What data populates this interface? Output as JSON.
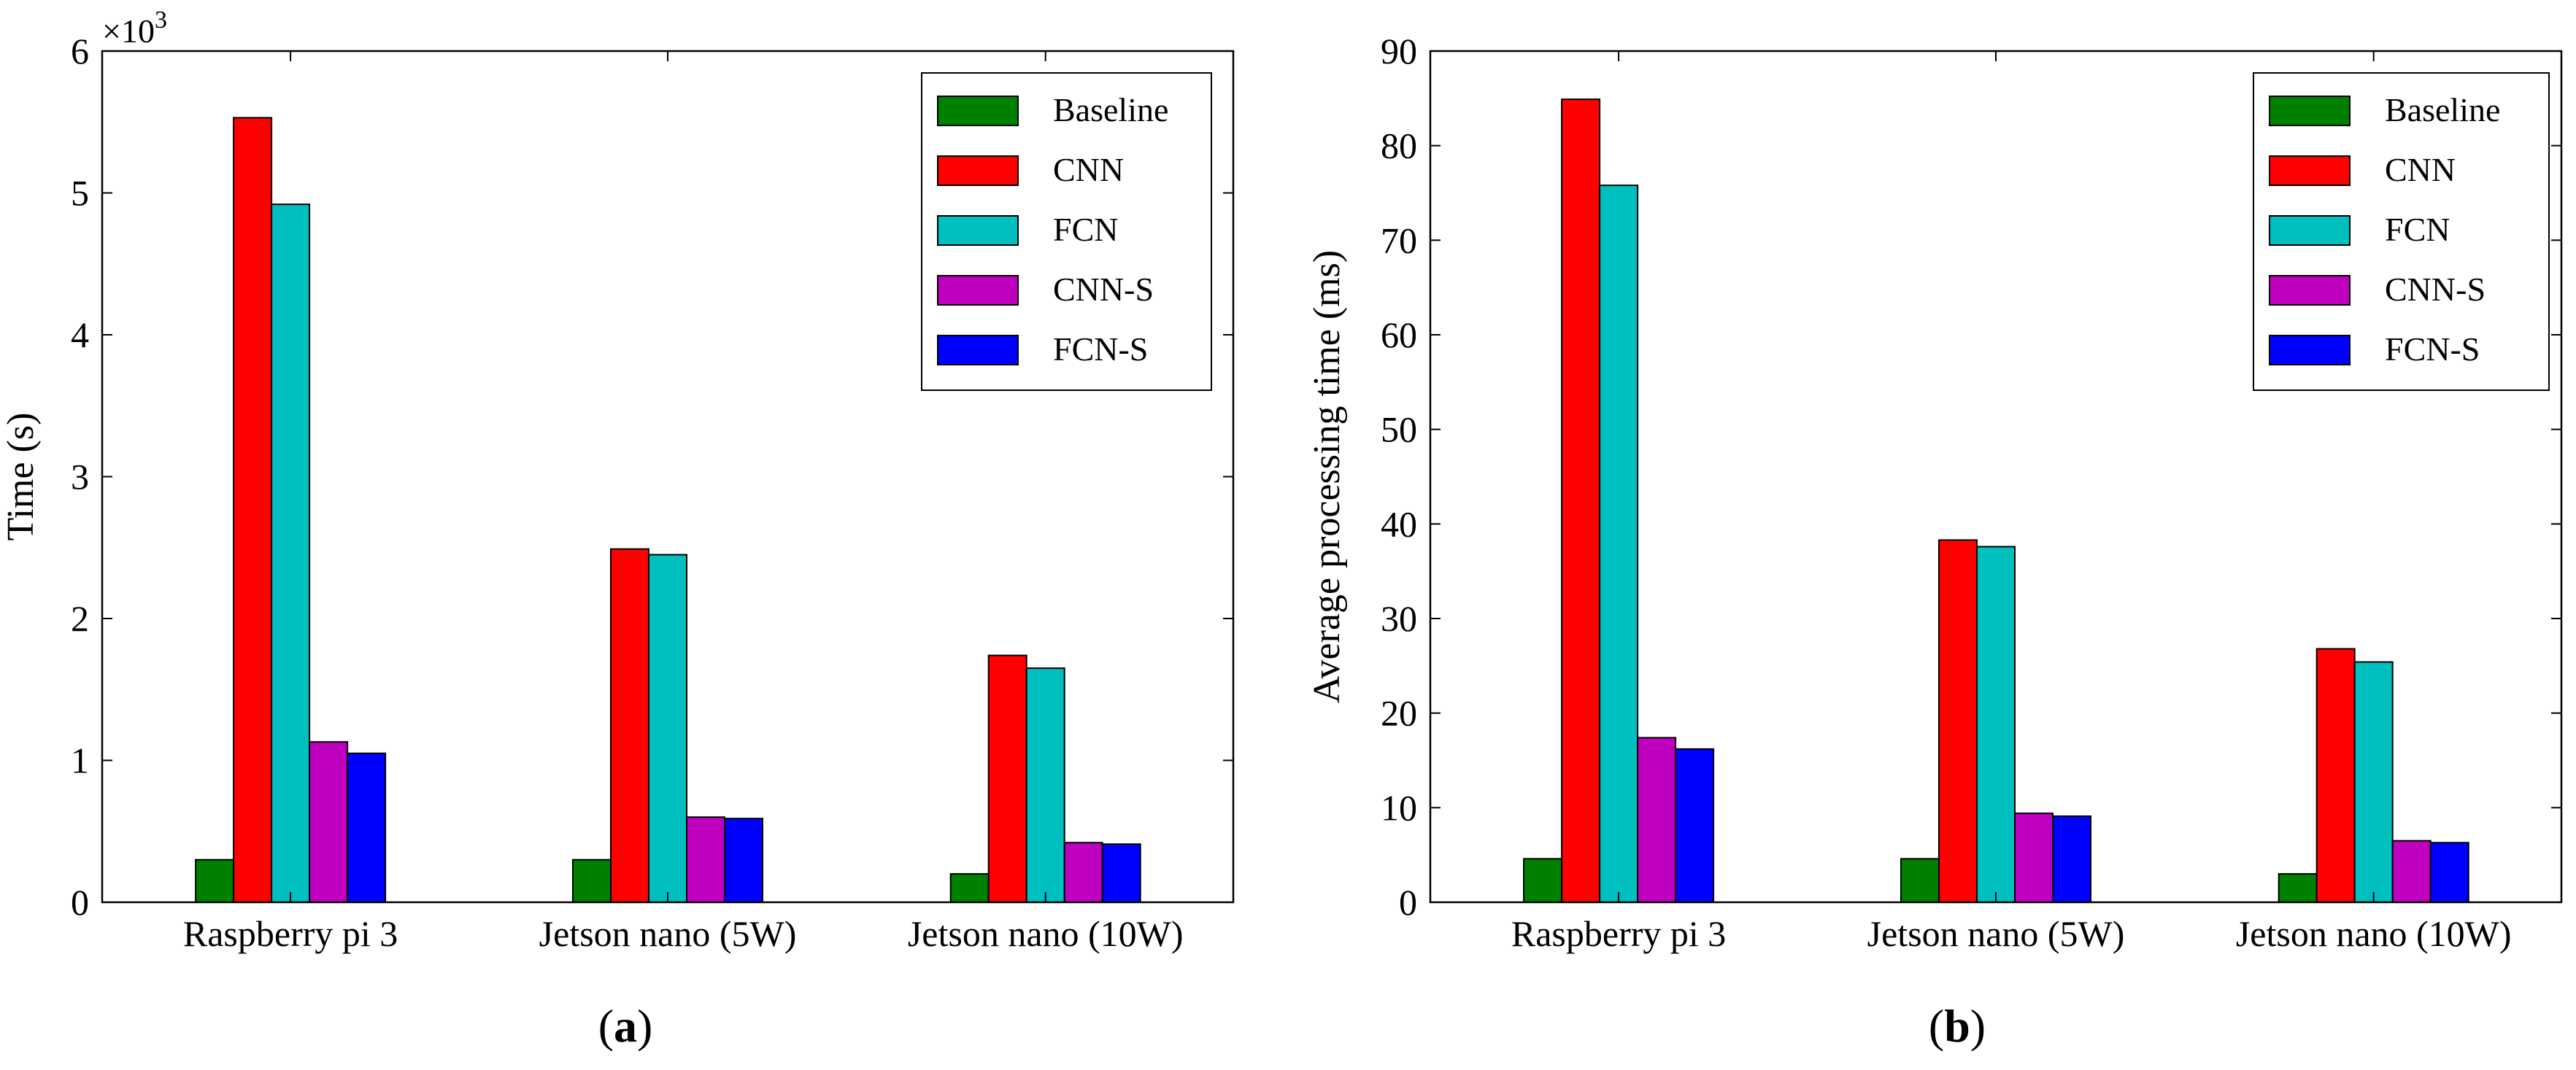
{
  "chart_data": [
    {
      "type": "bar",
      "caption": "a",
      "ylabel": "Time (s)",
      "xlabel": "",
      "y_multiplier_label": "×10",
      "y_multiplier_exponent": "3",
      "ylim": [
        0,
        6
      ],
      "yticks": [
        0,
        1,
        2,
        3,
        4,
        5,
        6
      ],
      "ytick_labels": [
        "0",
        "1",
        "2",
        "3",
        "4",
        "5",
        "6"
      ],
      "categories": [
        "Raspberry pi 3",
        "Jetson nano (5W)",
        "Jetson nano (10W)"
      ],
      "legend_position": "top-right",
      "series": [
        {
          "name": "Baseline",
          "color": "#008000",
          "values": [
            0.3,
            0.3,
            0.2
          ]
        },
        {
          "name": "CNN",
          "color": "#ff0000",
          "values": [
            5.53,
            2.49,
            1.74
          ]
        },
        {
          "name": "FCN",
          "color": "#00bfbf",
          "values": [
            4.92,
            2.45,
            1.65
          ]
        },
        {
          "name": "CNN-S",
          "color": "#bf00bf",
          "values": [
            1.13,
            0.6,
            0.42
          ]
        },
        {
          "name": "FCN-S",
          "color": "#0000ff",
          "values": [
            1.05,
            0.59,
            0.41
          ]
        }
      ]
    },
    {
      "type": "bar",
      "caption": "b",
      "ylabel": "Average processing time (ms)",
      "xlabel": "",
      "ylim": [
        0,
        90
      ],
      "yticks": [
        0,
        10,
        20,
        30,
        40,
        50,
        60,
        70,
        80,
        90
      ],
      "ytick_labels": [
        "0",
        "10",
        "20",
        "30",
        "40",
        "50",
        "60",
        "70",
        "80",
        "90"
      ],
      "categories": [
        "Raspberry pi 3",
        "Jetson nano (5W)",
        "Jetson nano (10W)"
      ],
      "legend_position": "top-right",
      "series": [
        {
          "name": "Baseline",
          "color": "#008000",
          "values": [
            4.6,
            4.6,
            3.0
          ]
        },
        {
          "name": "CNN",
          "color": "#ff0000",
          "values": [
            84.9,
            38.3,
            26.8
          ]
        },
        {
          "name": "FCN",
          "color": "#00bfbf",
          "values": [
            75.8,
            37.6,
            25.4
          ]
        },
        {
          "name": "CNN-S",
          "color": "#bf00bf",
          "values": [
            17.4,
            9.4,
            6.5
          ]
        },
        {
          "name": "FCN-S",
          "color": "#0000ff",
          "values": [
            16.2,
            9.1,
            6.3
          ]
        }
      ]
    }
  ]
}
